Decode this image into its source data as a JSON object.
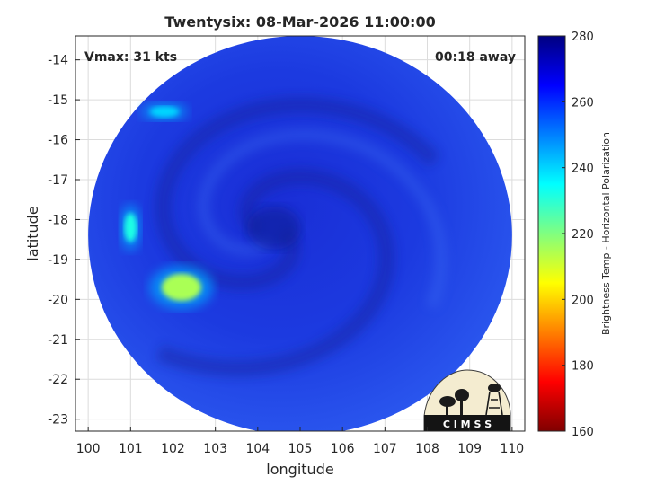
{
  "chart_data": {
    "type": "heatmap",
    "title": "Twentysix: 08-Mar-2026 11:00:00",
    "annotations": {
      "top_left": "Vmax: 31 kts",
      "top_right": "00:18 away"
    },
    "xlabel": "longitude",
    "ylabel": "latitude",
    "xlim": [
      99.7,
      110.3
    ],
    "ylim": [
      -23.3,
      -13.4
    ],
    "x_ticks": [
      100,
      101,
      102,
      103,
      104,
      105,
      106,
      107,
      108,
      109,
      110
    ],
    "y_ticks": [
      -14,
      -15,
      -16,
      -17,
      -18,
      -19,
      -20,
      -21,
      -22,
      -23
    ],
    "grid": true,
    "colorbar": {
      "label": "Brightness Temp - Horizontal Polarization",
      "min": 160,
      "max": 280,
      "ticks": [
        160,
        180,
        200,
        220,
        240,
        260,
        280
      ],
      "colormap": [
        "#800000",
        "#ff0000",
        "#ffff00",
        "#00ffff",
        "#0000ff",
        "#000080"
      ]
    },
    "swath": {
      "center_lon": 105.0,
      "center_lat": -18.4,
      "radius_deg": 5.0
    },
    "typical_value": 258,
    "cold_features": [
      {
        "lon": 101.8,
        "lat": -15.3,
        "value": 240
      },
      {
        "lon": 101.0,
        "lat": -18.2,
        "value": 232
      },
      {
        "lon": 102.2,
        "lat": -19.7,
        "value": 215
      }
    ],
    "logo_text": "C I M S S"
  }
}
